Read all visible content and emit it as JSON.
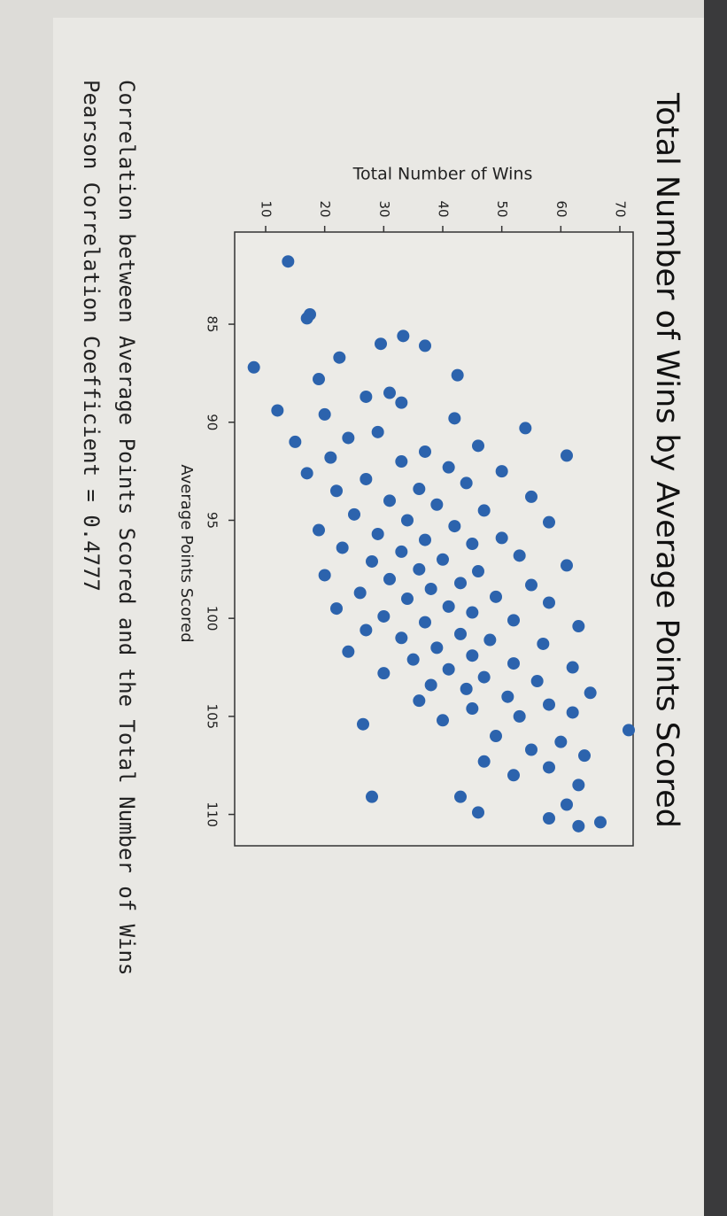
{
  "chart_data": {
    "type": "scatter",
    "title": "Total Number of Wins by Average Points Scored",
    "x_label": "Average Points Scored",
    "y_label": "Total Number of Wins",
    "color": "#2c63ad",
    "xlim": [
      80.3,
      111.6
    ],
    "ylim": [
      4.75,
      72.25
    ],
    "xticks": [
      85,
      90,
      95,
      100,
      105,
      110
    ],
    "yticks": [
      10,
      20,
      30,
      40,
      50,
      60,
      70
    ],
    "x": [
      81.8,
      84.5,
      84.7,
      85.6,
      86.0,
      86.1,
      86.7,
      87.2,
      87.6,
      87.8,
      88.5,
      88.7,
      89.0,
      89.4,
      89.6,
      89.8,
      90.3,
      90.5,
      90.8,
      91.0,
      91.2,
      91.5,
      91.7,
      91.8,
      92.0,
      92.3,
      92.5,
      92.6,
      92.9,
      93.1,
      93.4,
      93.5,
      93.8,
      94.0,
      94.2,
      94.5,
      94.7,
      95.0,
      95.1,
      95.3,
      95.5,
      95.7,
      95.9,
      96.0,
      96.2,
      96.4,
      96.6,
      96.8,
      97.0,
      97.1,
      97.3,
      97.5,
      97.6,
      97.8,
      98.0,
      98.2,
      98.3,
      98.5,
      98.7,
      98.9,
      99.0,
      99.2,
      99.4,
      99.5,
      99.7,
      99.9,
      100.1,
      100.2,
      100.4,
      100.6,
      100.8,
      101.0,
      101.1,
      101.3,
      101.5,
      101.7,
      101.9,
      102.1,
      102.3,
      102.5,
      102.6,
      102.8,
      103.0,
      103.2,
      103.4,
      103.6,
      103.8,
      104.0,
      104.2,
      104.4,
      104.6,
      104.8,
      105.0,
      105.2,
      105.4,
      105.7,
      106.0,
      106.3,
      106.7,
      107.0,
      107.3,
      107.6,
      108.0,
      108.5,
      109.1,
      109.1,
      109.5,
      109.9,
      110.2,
      110.4,
      110.6
    ],
    "values": [
      13.8,
      17.5,
      17,
      33.3,
      29.5,
      37,
      22.5,
      8,
      42.5,
      19,
      31,
      27,
      33,
      12,
      20,
      42,
      54,
      29,
      24,
      15,
      46,
      37,
      61,
      21,
      33,
      41,
      50,
      17,
      27,
      44,
      36,
      22,
      55,
      31,
      39,
      47,
      25,
      34,
      58,
      42,
      19,
      29,
      50,
      37,
      45,
      23,
      33,
      53,
      40,
      28,
      61,
      36,
      46,
      20,
      31,
      43,
      55,
      38,
      26,
      49,
      34,
      58,
      41,
      22,
      45,
      30,
      52,
      37,
      63,
      27,
      43,
      33,
      48,
      57,
      39,
      24,
      45,
      35,
      52,
      62,
      41,
      30,
      47,
      56,
      38,
      44,
      65,
      51,
      36,
      58,
      45,
      62,
      53,
      40,
      26.5,
      71.5,
      49,
      60,
      55,
      64,
      47,
      58,
      52,
      63,
      28,
      43,
      61,
      46,
      58,
      66.7,
      63
    ]
  },
  "output_lines": [
    "Correlation between Average Points Scored and the Total Number of Wins",
    "Pearson Correlation Coefficient = 0.4777"
  ]
}
